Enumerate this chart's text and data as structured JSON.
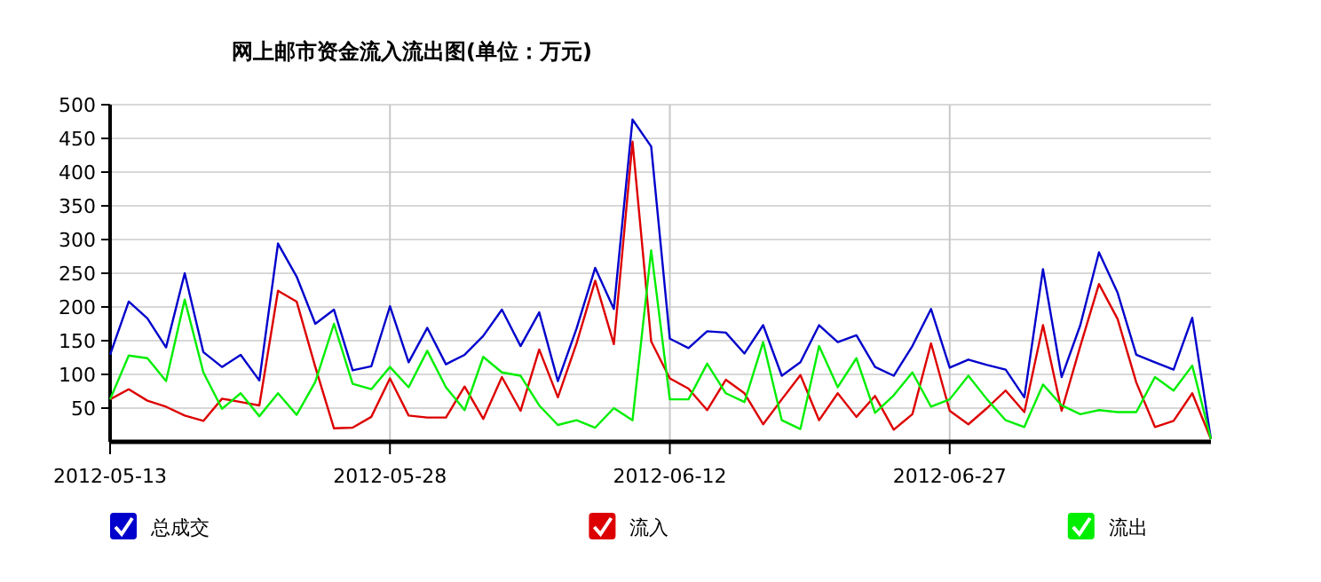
{
  "chart_data": {
    "type": "line",
    "title": "网上邮市资金流入流出图(单位：万元)",
    "x": [
      "2012-05-13",
      "2012-05-14",
      "2012-05-15",
      "2012-05-16",
      "2012-05-17",
      "2012-05-18",
      "2012-05-19",
      "2012-05-20",
      "2012-05-21",
      "2012-05-22",
      "2012-05-23",
      "2012-05-24",
      "2012-05-25",
      "2012-05-26",
      "2012-05-27",
      "2012-05-28",
      "2012-05-29",
      "2012-05-30",
      "2012-05-31",
      "2012-06-01",
      "2012-06-02",
      "2012-06-03",
      "2012-06-04",
      "2012-06-05",
      "2012-06-06",
      "2012-06-07",
      "2012-06-08",
      "2012-06-09",
      "2012-06-10",
      "2012-06-11",
      "2012-06-12",
      "2012-06-13",
      "2012-06-14",
      "2012-06-15",
      "2012-06-16",
      "2012-06-17",
      "2012-06-18",
      "2012-06-19",
      "2012-06-20",
      "2012-06-21",
      "2012-06-22",
      "2012-06-23",
      "2012-06-24",
      "2012-06-25",
      "2012-06-26",
      "2012-06-27",
      "2012-06-28",
      "2012-06-29",
      "2012-06-30",
      "2012-07-01",
      "2012-07-02",
      "2012-07-03",
      "2012-07-04",
      "2012-07-05",
      "2012-07-06",
      "2012-07-07",
      "2012-07-08",
      "2012-07-09",
      "2012-07-10",
      "2012-07-11"
    ],
    "xlim": [
      "2012-05-13",
      "2012-07-11"
    ],
    "xticks": [
      "2012-05-13",
      "2012-05-28",
      "2012-06-12",
      "2012-06-27"
    ],
    "ylim": [
      0,
      500
    ],
    "yticks": [
      50,
      100,
      150,
      200,
      250,
      300,
      350,
      400,
      450,
      500
    ],
    "grid": true,
    "legend": "bottom",
    "series": [
      {
        "name": "总成交",
        "color": "#0000cc",
        "values": [
          129,
          208,
          183,
          140,
          250,
          133,
          111,
          129,
          91,
          294,
          245,
          175,
          196,
          106,
          112,
          201,
          118,
          169,
          115,
          129,
          157,
          196,
          142,
          192,
          90,
          168,
          258,
          197,
          478,
          438,
          153,
          139,
          164,
          162,
          131,
          173,
          98,
          118,
          173,
          148,
          158,
          111,
          98,
          142,
          197,
          110,
          122,
          114,
          107,
          66,
          256,
          96,
          173,
          281,
          221,
          129,
          118,
          107,
          184,
          4
        ]
      },
      {
        "name": "流入",
        "color": "#dd0000",
        "values": [
          63,
          78,
          61,
          52,
          39,
          31,
          64,
          59,
          54,
          224,
          208,
          111,
          20,
          21,
          37,
          94,
          39,
          36,
          36,
          82,
          34,
          96,
          46,
          137,
          66,
          146,
          239,
          145,
          445,
          149,
          94,
          79,
          47,
          92,
          72,
          26,
          63,
          99,
          32,
          72,
          37,
          68,
          18,
          41,
          146,
          46,
          26,
          50,
          76,
          44,
          173,
          46,
          142,
          234,
          182,
          88,
          22,
          31,
          72,
          4
        ]
      },
      {
        "name": "流出",
        "color": "#00ee00",
        "values": [
          63,
          128,
          124,
          90,
          211,
          103,
          49,
          72,
          38,
          72,
          40,
          89,
          175,
          86,
          78,
          111,
          81,
          135,
          81,
          47,
          126,
          103,
          98,
          54,
          25,
          32,
          21,
          50,
          32,
          284,
          63,
          63,
          116,
          72,
          59,
          148,
          32,
          19,
          142,
          81,
          124,
          43,
          69,
          103,
          52,
          63,
          98,
          63,
          32,
          22,
          85,
          54,
          41,
          47,
          44,
          44,
          96,
          76,
          113,
          4
        ]
      }
    ]
  }
}
